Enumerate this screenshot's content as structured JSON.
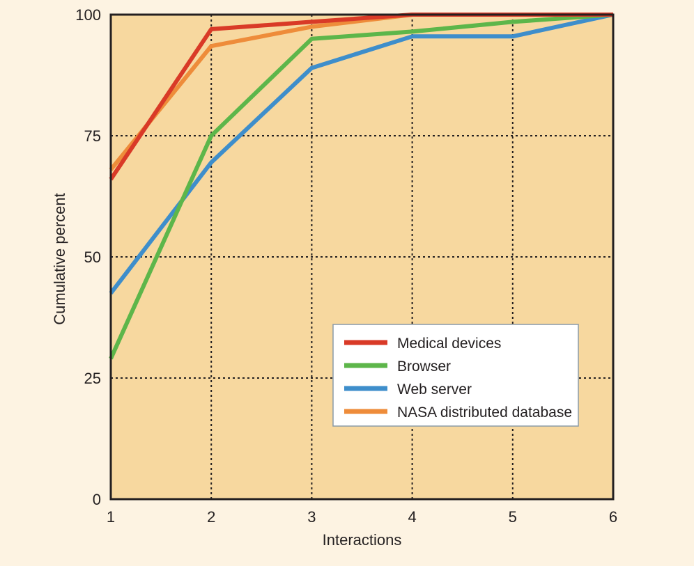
{
  "chart_data": {
    "type": "line",
    "title": "",
    "xlabel": "Interactions",
    "ylabel": "Cumulative percent",
    "x": [
      1,
      2,
      3,
      4,
      5,
      6
    ],
    "xlim": [
      1,
      6
    ],
    "ylim": [
      0,
      100
    ],
    "x_ticks": [
      "1",
      "2",
      "3",
      "4",
      "5",
      "6"
    ],
    "y_ticks": [
      "0",
      "25",
      "50",
      "75",
      "100"
    ],
    "y_tick_values": [
      0,
      25,
      50,
      75,
      100
    ],
    "grid": true,
    "grid_style": "dotted",
    "legend_position": "lower-right",
    "colors": {
      "page_background": "#fdf3e2",
      "plot_background": "#f7d89f",
      "axis": "#231f20",
      "grid": "#231f20"
    },
    "series": [
      {
        "name": "NASA distributed database",
        "color": "#ee8c3a",
        "values": [
          68,
          93.5,
          97.5,
          100,
          100,
          100
        ]
      },
      {
        "name": "Web server",
        "color": "#3e8ecb",
        "values": [
          42.5,
          69.5,
          89,
          95.5,
          95.5,
          100
        ]
      },
      {
        "name": "Browser",
        "color": "#5db64a",
        "values": [
          29,
          75,
          95,
          96.5,
          98.5,
          100
        ]
      },
      {
        "name": "Medical devices",
        "color": "#d93a27",
        "values": [
          66,
          97,
          98.5,
          100,
          100,
          100
        ]
      }
    ],
    "legend_order": [
      "Medical devices",
      "Browser",
      "Web server",
      "NASA distributed database"
    ]
  }
}
